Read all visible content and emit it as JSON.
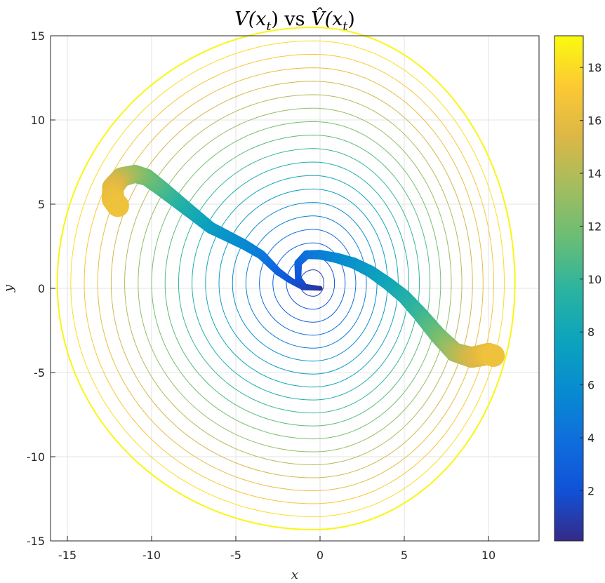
{
  "chart_data": {
    "type": "contour",
    "title": "V(x_t) vs V̂(x_t)",
    "title_parts": {
      "a": "V(x",
      "b": "t",
      "c": ") vs ",
      "d": "V̂(x",
      "e": "t",
      "f": ")"
    },
    "xlabel": "x",
    "ylabel": "y",
    "xlim": [
      -16,
      13
    ],
    "ylim": [
      -15,
      15
    ],
    "xticks": [
      -15,
      -10,
      -5,
      0,
      5,
      10
    ],
    "xtick_labels": [
      "-15",
      "-10",
      "-5",
      "0",
      "5",
      "10"
    ],
    "yticks": [
      -15,
      -10,
      -5,
      0,
      5,
      10,
      15
    ],
    "ytick_labels": [
      "-15",
      "-10",
      "-5",
      "0",
      "5",
      "10",
      "15"
    ],
    "grid": true,
    "colormap": "parula",
    "colorbar": {
      "range": [
        0.1,
        19.2
      ],
      "ticks": [
        2,
        4,
        6,
        8,
        10,
        12,
        14,
        16,
        18
      ],
      "tick_labels": [
        "2",
        "4",
        "6",
        "8",
        "10",
        "12",
        "14",
        "16",
        "18"
      ]
    },
    "contour_levels": [
      1,
      2,
      3,
      4,
      5,
      6,
      7,
      8,
      9,
      10,
      11,
      12,
      13,
      14,
      15,
      16,
      17,
      18
    ],
    "outer_boundary_level": 19,
    "trajectories": [
      {
        "name": "left",
        "points": [
          [
            0.0,
            0.0,
            0.5
          ],
          [
            -1.0,
            0.05,
            1.2
          ],
          [
            -1.8,
            0.5,
            2.0
          ],
          [
            -2.5,
            1.0,
            3.0
          ],
          [
            -3.5,
            2.0,
            4.5
          ],
          [
            -4.5,
            2.6,
            5.5
          ],
          [
            -5.5,
            3.1,
            6.2
          ],
          [
            -6.5,
            3.6,
            7.0
          ],
          [
            -7.5,
            4.4,
            8.0
          ],
          [
            -8.5,
            5.2,
            9.2
          ],
          [
            -9.5,
            6.0,
            10.5
          ],
          [
            -10.3,
            6.6,
            11.5
          ],
          [
            -11.0,
            6.8,
            12.5
          ],
          [
            -11.8,
            6.6,
            14.0
          ],
          [
            -12.3,
            6.0,
            15.5
          ],
          [
            -12.3,
            5.3,
            16.2
          ],
          [
            -12.0,
            4.9,
            16.5
          ]
        ]
      },
      {
        "name": "right",
        "points": [
          [
            0.0,
            0.0,
            0.5
          ],
          [
            -0.9,
            0.1,
            1.2
          ],
          [
            -1.3,
            0.6,
            2.0
          ],
          [
            -1.3,
            1.5,
            3.0
          ],
          [
            -0.8,
            2.0,
            4.0
          ],
          [
            0.0,
            2.0,
            4.8
          ],
          [
            1.0,
            1.8,
            5.5
          ],
          [
            2.0,
            1.5,
            6.3
          ],
          [
            3.0,
            1.0,
            7.0
          ],
          [
            4.0,
            0.3,
            7.8
          ],
          [
            5.0,
            -0.5,
            8.8
          ],
          [
            6.0,
            -1.6,
            10.0
          ],
          [
            7.0,
            -2.8,
            11.5
          ],
          [
            8.0,
            -3.8,
            13.5
          ],
          [
            9.0,
            -4.1,
            15.0
          ],
          [
            10.0,
            -3.9,
            16.2
          ],
          [
            10.3,
            -4.0,
            16.5
          ]
        ]
      }
    ]
  }
}
